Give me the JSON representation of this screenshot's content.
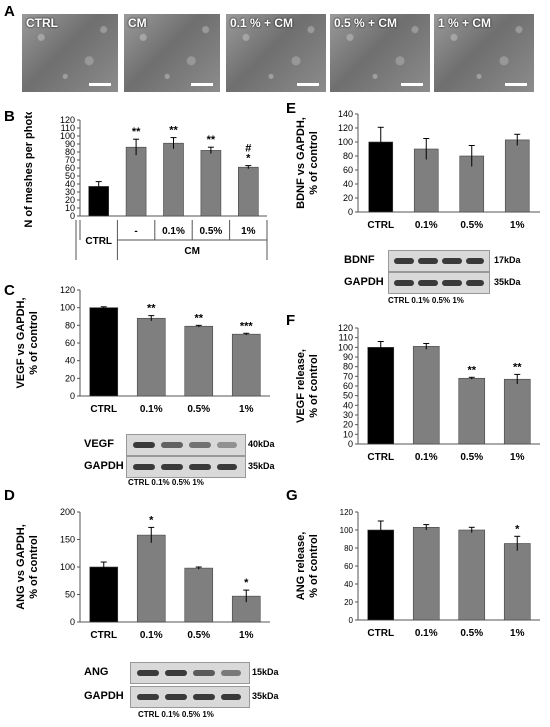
{
  "panels": {
    "A": {
      "letter": "A",
      "images": [
        {
          "label": "CTRL"
        },
        {
          "label": "CM"
        },
        {
          "label": "0.1 % + CM"
        },
        {
          "label": "0.5 % + CM"
        },
        {
          "label": "1 % + CM"
        }
      ]
    },
    "B": {
      "letter": "B",
      "group_label": "CM"
    },
    "C": {
      "letter": "C"
    },
    "D": {
      "letter": "D"
    },
    "E": {
      "letter": "E"
    },
    "F": {
      "letter": "F"
    },
    "G": {
      "letter": "G"
    }
  },
  "chart_data": [
    {
      "id": "B",
      "type": "bar",
      "ylabel": "N of meshes per photo",
      "categories": [
        "CTRL",
        "-",
        "0.1%",
        "0.5%",
        "1%"
      ],
      "values": [
        37,
        86,
        91,
        82,
        61
      ],
      "errors": [
        6,
        10,
        7,
        4,
        2
      ],
      "annotations": [
        "",
        "**",
        "**",
        "**",
        "#\n*"
      ],
      "colors": [
        "#000000",
        "#7f7f7f",
        "#7f7f7f",
        "#7f7f7f",
        "#7f7f7f"
      ],
      "ylim": [
        0,
        120
      ],
      "yticks": [
        0,
        10,
        20,
        30,
        40,
        50,
        60,
        70,
        80,
        90,
        100,
        110,
        120
      ]
    },
    {
      "id": "C",
      "type": "bar",
      "ylabel": "VEGF vs GAPDH,\n% of control",
      "categories": [
        "CTRL",
        "0.1%",
        "0.5%",
        "1%"
      ],
      "values": [
        100,
        88,
        79,
        70
      ],
      "errors": [
        1,
        3,
        1,
        1
      ],
      "annotations": [
        "",
        "**",
        "**",
        "***"
      ],
      "colors": [
        "#000000",
        "#7f7f7f",
        "#7f7f7f",
        "#7f7f7f"
      ],
      "ylim": [
        0,
        120
      ],
      "yticks": [
        0,
        20,
        40,
        60,
        80,
        100,
        120
      ],
      "blot": {
        "rows": [
          {
            "name": "VEGF",
            "kda": "40kDa"
          },
          {
            "name": "GAPDH",
            "kda": "35kDa"
          }
        ],
        "lanes": "CTRL 0.1% 0.5% 1%"
      }
    },
    {
      "id": "D",
      "type": "bar",
      "ylabel": "ANG vs GAPDH,\n% of control",
      "categories": [
        "CTRL",
        "0.1%",
        "0.5%",
        "1%"
      ],
      "values": [
        100,
        158,
        98,
        47
      ],
      "errors": [
        9,
        14,
        2,
        11
      ],
      "annotations": [
        "",
        "*",
        "",
        "*"
      ],
      "colors": [
        "#000000",
        "#7f7f7f",
        "#7f7f7f",
        "#7f7f7f"
      ],
      "ylim": [
        0,
        200
      ],
      "yticks": [
        0,
        50,
        100,
        150,
        200
      ],
      "blot": {
        "rows": [
          {
            "name": "ANG",
            "kda": "15kDa"
          },
          {
            "name": "GAPDH",
            "kda": "35kDa"
          }
        ],
        "lanes": "CTRL 0.1% 0.5% 1%"
      }
    },
    {
      "id": "E",
      "type": "bar",
      "ylabel": "BDNF vs GAPDH,\n% of control",
      "categories": [
        "CTRL",
        "0.1%",
        "0.5%",
        "1%"
      ],
      "values": [
        100,
        90,
        80,
        103
      ],
      "errors": [
        21,
        15,
        15,
        8
      ],
      "annotations": [
        "",
        "",
        "",
        ""
      ],
      "colors": [
        "#000000",
        "#7f7f7f",
        "#7f7f7f",
        "#7f7f7f"
      ],
      "ylim": [
        0,
        140
      ],
      "yticks": [
        0,
        20,
        40,
        60,
        80,
        100,
        120,
        140
      ],
      "blot": {
        "rows": [
          {
            "name": "BDNF",
            "kda": "17kDa"
          },
          {
            "name": "GAPDH",
            "kda": "35kDa"
          }
        ],
        "lanes": "CTRL 0.1% 0.5% 1%"
      }
    },
    {
      "id": "F",
      "type": "bar",
      "ylabel": "VEGF release,\n% of control",
      "categories": [
        "CTRL",
        "0.1%",
        "0.5%",
        "1%"
      ],
      "values": [
        100,
        101,
        68,
        67
      ],
      "errors": [
        6,
        3,
        1,
        5
      ],
      "annotations": [
        "",
        "",
        "**",
        "**"
      ],
      "colors": [
        "#000000",
        "#7f7f7f",
        "#7f7f7f",
        "#7f7f7f"
      ],
      "ylim": [
        0,
        120
      ],
      "yticks": [
        0,
        10,
        20,
        30,
        40,
        50,
        60,
        70,
        80,
        90,
        100,
        110,
        120
      ]
    },
    {
      "id": "G",
      "type": "bar",
      "ylabel": "ANG release,\n% of control",
      "categories": [
        "CTRL",
        "0.1%",
        "0.5%",
        "1%"
      ],
      "values": [
        100,
        103,
        100,
        85
      ],
      "errors": [
        10,
        3,
        3,
        8
      ],
      "annotations": [
        "",
        "",
        "",
        "*"
      ],
      "colors": [
        "#000000",
        "#7f7f7f",
        "#7f7f7f",
        "#7f7f7f"
      ],
      "ylim": [
        0,
        120
      ],
      "yticks": [
        0,
        20,
        40,
        60,
        80,
        100,
        120
      ]
    }
  ]
}
